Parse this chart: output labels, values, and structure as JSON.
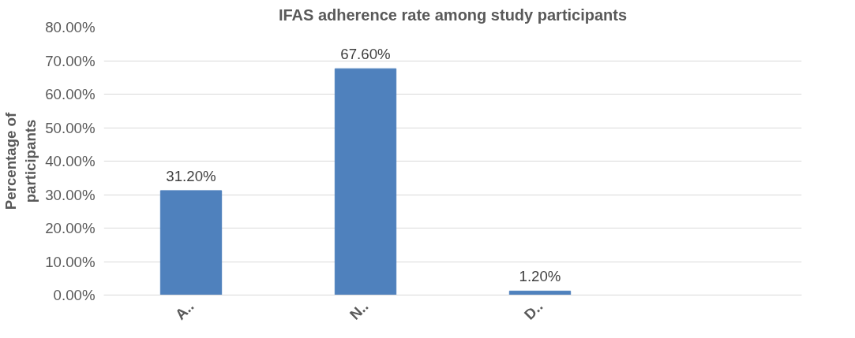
{
  "chart_data": {
    "type": "bar",
    "title": "IFAS adherence rate among study participants",
    "ylabel": "Percentage of\nparticipants",
    "categories": [
      "A..",
      "N..",
      "D..",
      null
    ],
    "values": [
      31.2,
      67.6,
      1.2,
      null
    ],
    "color": "#4f81bd",
    "value_labels": [
      "31.20%",
      "67.60%",
      "1.20%",
      null
    ],
    "ylim": [
      0,
      80
    ],
    "yticks": [
      {
        "value": 0,
        "label": "0.00%"
      },
      {
        "value": 10,
        "label": "10.00%"
      },
      {
        "value": 20,
        "label": "20.00%"
      },
      {
        "value": 30,
        "label": "30.00%"
      },
      {
        "value": 40,
        "label": "40.00%"
      },
      {
        "value": 50,
        "label": "50.00%"
      },
      {
        "value": 60,
        "label": "60.00%"
      },
      {
        "value": 70,
        "label": "70.00%"
      },
      {
        "value": 80,
        "label": "80.00%"
      }
    ],
    "grid": "y"
  }
}
